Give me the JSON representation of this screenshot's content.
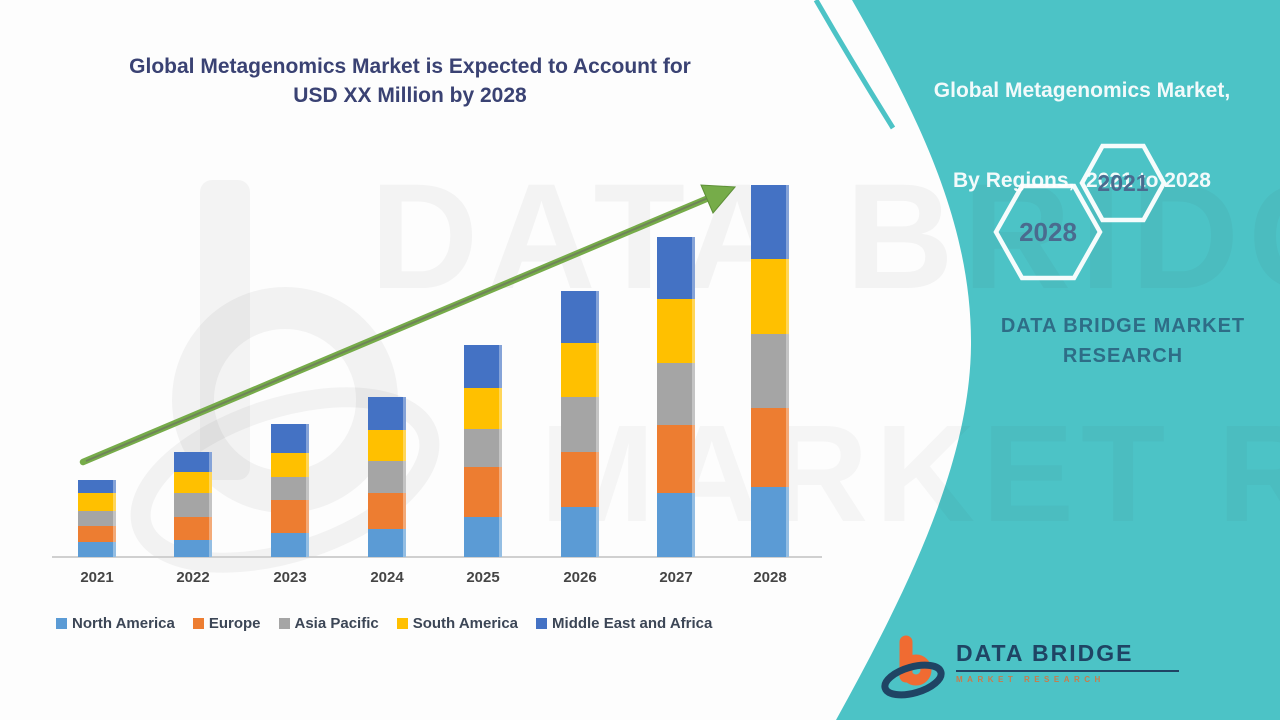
{
  "page": {
    "chart_title_line1": "Global Metagenomics Market is Expected to Account for",
    "chart_title_line2": "USD XX Million by 2028"
  },
  "side_panel": {
    "title_line1": "Global Metagenomics Market,",
    "title_line2": "By Regions,  2021 to 2028",
    "hexagon_year_top": "2021",
    "hexagon_year_bottom": "2028",
    "brand_line1": "DATA BRIDGE MARKET",
    "brand_line2": "RESEARCH"
  },
  "logo": {
    "name": "DATA BRIDGE",
    "tagline": "MARKET RESEARCH"
  },
  "watermark": {
    "line1": "DATA BRIDGE",
    "line2": "MARKET RESEARCH"
  },
  "chart_data": {
    "type": "bar",
    "stacked": true,
    "title": "Global Metagenomics Market is Expected to Account for USD XX Million by 2028",
    "categories": [
      "2021",
      "2022",
      "2023",
      "2024",
      "2025",
      "2026",
      "2027",
      "2028"
    ],
    "series": [
      {
        "name": "North America",
        "color": "#5B9BD5",
        "values": [
          15,
          17,
          24,
          28,
          40,
          50,
          64,
          70
        ]
      },
      {
        "name": "Europe",
        "color": "#ED7D31",
        "values": [
          16,
          23,
          33,
          36,
          50,
          55,
          68,
          79
        ]
      },
      {
        "name": "Asia Pacific",
        "color": "#A5A5A5",
        "values": [
          15,
          24,
          23,
          32,
          38,
          55,
          62,
          74
        ]
      },
      {
        "name": "South America",
        "color": "#FFC000",
        "values": [
          18,
          21,
          24,
          31,
          41,
          54,
          64,
          75
        ]
      },
      {
        "name": "Middle East and Africa",
        "color": "#4472C4",
        "values": [
          13,
          20,
          29,
          33,
          43,
          52,
          62,
          74
        ]
      }
    ],
    "stack_totals": [
      77,
      105,
      133,
      160,
      212,
      266,
      320,
      372
    ],
    "xlabel": "",
    "ylabel": "",
    "y_axis_visible": false,
    "grid": false,
    "legend_position": "bottom",
    "annotations": [
      "upward green trend arrow from 2021 to 2028"
    ]
  },
  "colors": {
    "panel_teal": "#4CC3C6",
    "trend_arrow_green": "#76AC49",
    "title_text": "#3A4273",
    "brand_text_on_teal": "#2E6D87",
    "axis_label_text": "#454545",
    "legend_text": "#3C4656",
    "hexagon_outline": "#FFFFFF",
    "hexagon_year_text": "#4A6B8F",
    "logo_orange": "#F06B32",
    "logo_navy": "#1F4464",
    "axis_line": "#D0D0D0"
  }
}
